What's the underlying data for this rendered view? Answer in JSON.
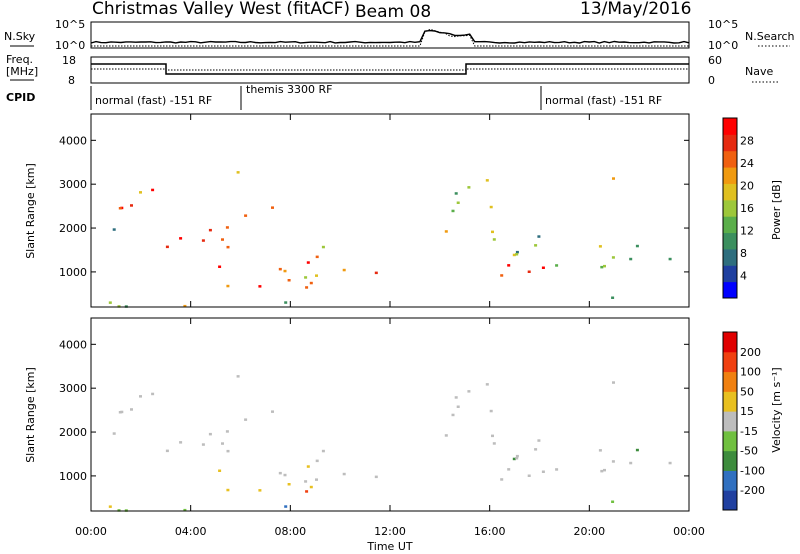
{
  "header": {
    "title": "Christmas Valley West (fitACF)",
    "beam": "Beam 08",
    "date": "13/May/2016"
  },
  "summary_panels": {
    "nsky_label": "N.Sky",
    "nsearch_label": "N.Search",
    "nsky_ticks": [
      "10^5",
      "10^0"
    ],
    "nsearch_ticks": [
      "10^5",
      "10^0"
    ],
    "freq_label_1": "Freq.",
    "freq_label_2": "[MHz]",
    "freq_ticks": [
      "18",
      "8"
    ],
    "nave_label": "Nave",
    "nave_ticks": [
      "60",
      "0"
    ],
    "cpid_label": "CPID",
    "cpid_segments": [
      {
        "label": "normal (fast) -151 RF",
        "start": 0,
        "end": 6
      },
      {
        "label": "themis 3300 RF",
        "start": 6,
        "end": 18
      },
      {
        "label": "normal (fast) -151 RF",
        "start": 18,
        "end": 24
      }
    ]
  },
  "chart_data": [
    {
      "type": "heatmap",
      "name": "power",
      "xlabel": "",
      "ylabel": "Slant Range [km]",
      "x_range_hours": [
        0,
        24
      ],
      "ylim": [
        200,
        4600
      ],
      "y_ticks": [
        "1000",
        "2000",
        "3000",
        "4000"
      ],
      "colorbar": {
        "label": "Power [dB]",
        "ticks": [
          "28",
          "24",
          "20",
          "16",
          "12",
          "8",
          "4"
        ],
        "colors": [
          "#0000ff",
          "#1f3f9f",
          "#2e6e7e",
          "#3b8f5e",
          "#5aae4a",
          "#9dc73a",
          "#e0c020",
          "#f09a10",
          "#f06010",
          "#e62a10",
          "#ff0000"
        ]
      }
    },
    {
      "type": "heatmap",
      "name": "velocity",
      "xlabel": "Time UT",
      "ylabel": "Slant Range [km]",
      "x_range_hours": [
        0,
        24
      ],
      "ylim": [
        200,
        4600
      ],
      "y_ticks": [
        "1000",
        "2000",
        "3000",
        "4000"
      ],
      "x_ticks": [
        "00:00",
        "04:00",
        "08:00",
        "12:00",
        "16:00",
        "20:00",
        "00:00"
      ],
      "colorbar": {
        "label": "Velocity [m s⁻¹]",
        "ticks": [
          "200",
          "100",
          "50",
          "15",
          "-15",
          "-50",
          "-100",
          "-200"
        ],
        "colors": [
          "#2040a0",
          "#3070c0",
          "#3d8c3d",
          "#70c040",
          "#bdbdbd",
          "#e8c020",
          "#f08010",
          "#f04010",
          "#e00000"
        ]
      }
    }
  ]
}
